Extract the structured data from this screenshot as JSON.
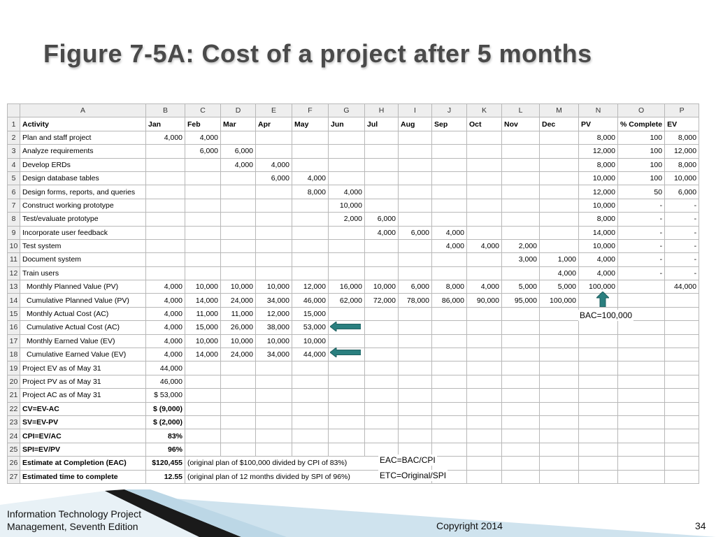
{
  "slide": {
    "title": "Figure 7-5A: Cost of a project after 5 months"
  },
  "sheet": {
    "columns": [
      "A",
      "B",
      "C",
      "D",
      "E",
      "F",
      "G",
      "H",
      "I",
      "J",
      "K",
      "L",
      "M",
      "N",
      "O",
      "P"
    ],
    "rows": [
      {
        "n": "1",
        "cells": [
          "Activity",
          "Jan",
          "Feb",
          "Mar",
          "Apr",
          "May",
          "Jun",
          "Jul",
          "Aug",
          "Sep",
          "Oct",
          "Nov",
          "Dec",
          "PV",
          "% Complete",
          "EV"
        ]
      },
      {
        "n": "2",
        "cells": [
          "Plan and staff project",
          "4,000",
          "4,000",
          "",
          "",
          "",
          "",
          "",
          "",
          "",
          "",
          "",
          "",
          "8,000",
          "100",
          "8,000"
        ]
      },
      {
        "n": "3",
        "cells": [
          "Analyze requirements",
          "",
          "6,000",
          "6,000",
          "",
          "",
          "",
          "",
          "",
          "",
          "",
          "",
          "",
          "12,000",
          "100",
          "12,000"
        ]
      },
      {
        "n": "4",
        "cells": [
          "Develop ERDs",
          "",
          "",
          "4,000",
          "4,000",
          "",
          "",
          "",
          "",
          "",
          "",
          "",
          "",
          "8,000",
          "100",
          "8,000"
        ]
      },
      {
        "n": "5",
        "cells": [
          "Design database tables",
          "",
          "",
          "",
          "6,000",
          "4,000",
          "",
          "",
          "",
          "",
          "",
          "",
          "",
          "10,000",
          "100",
          "10,000"
        ]
      },
      {
        "n": "6",
        "cells": [
          "Design forms, reports, and queries",
          "",
          "",
          "",
          "",
          "8,000",
          "4,000",
          "",
          "",
          "",
          "",
          "",
          "",
          "12,000",
          "50",
          "6,000"
        ]
      },
      {
        "n": "7",
        "cells": [
          "Construct working prototype",
          "",
          "",
          "",
          "",
          "",
          "10,000",
          "",
          "",
          "",
          "",
          "",
          "",
          "10,000",
          "-",
          "-"
        ]
      },
      {
        "n": "8",
        "cells": [
          "Test/evaluate prototype",
          "",
          "",
          "",
          "",
          "",
          "2,000",
          "6,000",
          "",
          "",
          "",
          "",
          "",
          "8,000",
          "-",
          "-"
        ]
      },
      {
        "n": "9",
        "cells": [
          "Incorporate user feedback",
          "",
          "",
          "",
          "",
          "",
          "",
          "4,000",
          "6,000",
          "4,000",
          "",
          "",
          "",
          "14,000",
          "-",
          "-"
        ]
      },
      {
        "n": "10",
        "cells": [
          "Test system",
          "",
          "",
          "",
          "",
          "",
          "",
          "",
          "",
          "4,000",
          "4,000",
          "2,000",
          "",
          "10,000",
          "-",
          "-"
        ]
      },
      {
        "n": "11",
        "cells": [
          "Document system",
          "",
          "",
          "",
          "",
          "",
          "",
          "",
          "",
          "",
          "",
          "3,000",
          "1,000",
          "4,000",
          "-",
          "-"
        ]
      },
      {
        "n": "12",
        "cells": [
          "Train users",
          "",
          "",
          "",
          "",
          "",
          "",
          "",
          "",
          "",
          "",
          "",
          "4,000",
          "4,000",
          "-",
          "-"
        ]
      },
      {
        "n": "13",
        "cells": [
          "Monthly Planned Value (PV)",
          "4,000",
          "10,000",
          "10,000",
          "10,000",
          "12,000",
          "16,000",
          "10,000",
          "6,000",
          "8,000",
          "4,000",
          "5,000",
          "5,000",
          "100,000",
          "",
          "44,000"
        ]
      },
      {
        "n": "14",
        "cells": [
          "Cumulative Planned Value (PV)",
          "4,000",
          "14,000",
          "24,000",
          "34,000",
          "46,000",
          "62,000",
          "72,000",
          "78,000",
          "86,000",
          "90,000",
          "95,000",
          "100,000",
          "",
          "",
          ""
        ]
      },
      {
        "n": "15",
        "cells": [
          "Monthly Actual Cost (AC)",
          "4,000",
          "11,000",
          "11,000",
          "12,000",
          "15,000",
          "",
          "",
          "",
          "",
          "",
          "",
          "",
          "",
          "",
          ""
        ]
      },
      {
        "n": "16",
        "cells": [
          "Cumulative Actual Cost (AC)",
          "4,000",
          "15,000",
          "26,000",
          "38,000",
          "53,000",
          "",
          "",
          "",
          "",
          "",
          "",
          "",
          "",
          "",
          ""
        ]
      },
      {
        "n": "17",
        "cells": [
          "Monthly Earned Value (EV)",
          "4,000",
          "10,000",
          "10,000",
          "10,000",
          "10,000",
          "",
          "",
          "",
          "",
          "",
          "",
          "",
          "",
          "",
          ""
        ]
      },
      {
        "n": "18",
        "cells": [
          "Cumulative Earned Value (EV)",
          "4,000",
          "14,000",
          "24,000",
          "34,000",
          "44,000",
          "",
          "",
          "",
          "",
          "",
          "",
          "",
          "",
          "",
          ""
        ]
      },
      {
        "n": "19",
        "cells": [
          "Project EV as of May 31",
          "44,000"
        ]
      },
      {
        "n": "20",
        "cells": [
          "Project PV as of May 31",
          "46,000"
        ]
      },
      {
        "n": "21",
        "cells": [
          "Project AC as of May 31",
          "$   53,000"
        ]
      },
      {
        "n": "22",
        "cells": [
          "CV=EV-AC",
          "$   (9,000)"
        ]
      },
      {
        "n": "23",
        "cells": [
          "SV=EV-PV",
          "$   (2,000)"
        ]
      },
      {
        "n": "24",
        "cells": [
          "CPI=EV/AC",
          "83%"
        ]
      },
      {
        "n": "25",
        "cells": [
          "SPI=EV/PV",
          "96%"
        ]
      },
      {
        "n": "26",
        "cells": [
          "Estimate at Completion (EAC)",
          "$120,455",
          "(original plan of $100,000 divided by CPI of 83%)"
        ]
      },
      {
        "n": "27",
        "cells": [
          "Estimated time to complete",
          "12.55",
          "(original plan of 12 months divided by SPI of 96%)"
        ]
      }
    ]
  },
  "annotations": {
    "bac": "BAC=100,000",
    "eac": "EAC=BAC/CPI",
    "etc": "ETC=Original/SPI"
  },
  "footer": {
    "book_line1": "Information Technology Project",
    "book_line2": "Management, Seventh Edition",
    "copyright": "Copyright 2014",
    "page": "34"
  },
  "colors": {
    "arrow": "#2a7f7f",
    "footer_band": "#cfe3ee",
    "footer_dark": "#1a1a1a"
  }
}
